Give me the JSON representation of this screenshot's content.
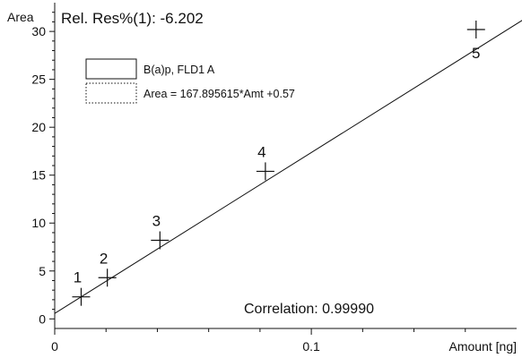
{
  "chart_data": {
    "type": "scatter",
    "title": "Rel. Res%(1): -6.202",
    "xlabel": "Amount [ng]",
    "ylabel": "Area",
    "xlim": [
      0,
      0.18
    ],
    "ylim": [
      -1,
      33
    ],
    "x_ticks": [
      0,
      0.1
    ],
    "x_tick_labels": [
      "0",
      "0.1"
    ],
    "y_ticks": [
      0,
      5,
      10,
      15,
      20,
      25,
      30
    ],
    "y_tick_labels": [
      "0",
      "5",
      "10",
      "15",
      "20",
      "25",
      "30"
    ],
    "legend": {
      "position": "top-left",
      "entries": [
        {
          "label": "B(a)p, FLD1 A",
          "style": "solid"
        },
        {
          "label": "Area = 167.895615*Amt +0.57",
          "style": "dotted"
        }
      ]
    },
    "fit": {
      "slope": 167.895615,
      "intercept": 0.57
    },
    "points": [
      {
        "label": "1",
        "x": 0.0103,
        "y": 2.3
      },
      {
        "label": "2",
        "x": 0.0205,
        "y": 4.3
      },
      {
        "label": "3",
        "x": 0.041,
        "y": 8.2
      },
      {
        "label": "4",
        "x": 0.0821,
        "y": 15.4
      },
      {
        "label": "5",
        "x": 0.1642,
        "y": 30.2
      }
    ],
    "correlation_text": "Correlation: 0.99990",
    "grid": false
  }
}
